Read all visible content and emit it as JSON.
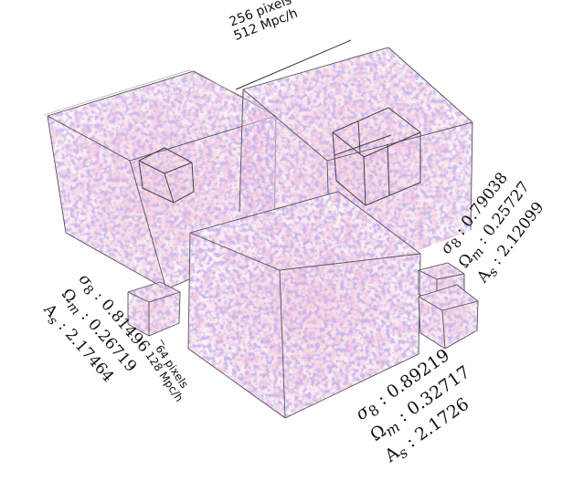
{
  "scale_annotations": {
    "large_pixels": "256 pixels",
    "large_physical": "512 Mpc/h",
    "small_pixels": "64 pixels",
    "small_physical": "128 Mpc/h"
  },
  "cubes": [
    {
      "id": "left",
      "sigma8_symbol": "σ",
      "sigma8_sub": "8",
      "sigma8_value": " : 0.81496",
      "omegam_symbol": "Ω",
      "omegam_sub": "m",
      "omegam_value": " : 0.26719",
      "as_symbol": "A",
      "as_sub": "s",
      "as_value": " : 2.17464"
    },
    {
      "id": "right",
      "sigma8_symbol": "σ",
      "sigma8_sub": "8",
      "sigma8_value": " : 0.79038",
      "omegam_symbol": "Ω",
      "omegam_sub": "m",
      "omegam_value": " : 0.25727",
      "as_symbol": "A",
      "as_sub": "s",
      "as_value": " : 2.12099"
    },
    {
      "id": "front",
      "sigma8_symbol": "σ",
      "sigma8_sub": "8",
      "sigma8_value": " : 0.89219",
      "omegam_symbol": "Ω",
      "omegam_sub": "m",
      "omegam_value": " : 0.32717",
      "as_symbol": "A",
      "as_sub": "s",
      "as_value": " : 2.1726"
    }
  ],
  "colors": {
    "cube_edge": "#555555",
    "matter_pink": "#e8a0c0",
    "matter_peach": "#f3c6a8",
    "matter_purple": "#9a7fd0",
    "background": "#ffffff"
  }
}
